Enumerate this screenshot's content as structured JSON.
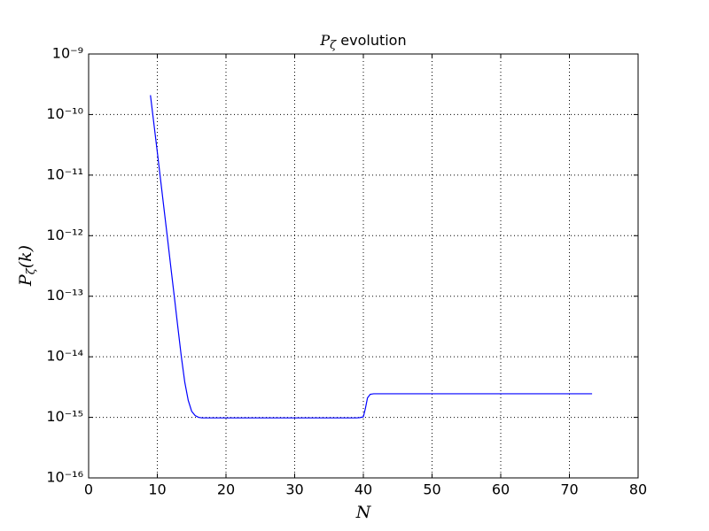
{
  "chart_data": {
    "type": "line",
    "title": [
      "P",
      "ζ",
      " evolution"
    ],
    "xlabel": "N",
    "ylabel": [
      "P",
      "ζ",
      "(k)"
    ],
    "x": [
      9,
      9.5,
      10,
      10.5,
      11,
      11.5,
      12,
      12.5,
      13,
      13.5,
      14,
      14.5,
      15,
      15.5,
      16,
      16.5,
      17,
      18,
      20,
      30,
      39,
      39.5,
      40,
      40.3,
      40.6,
      41,
      41.5,
      45,
      60,
      73.3
    ],
    "series": [
      {
        "name": "P",
        "color": "#0000ff",
        "values": [
          2.09e-10,
          7.08e-11,
          2.4e-11,
          7.94e-12,
          2.63e-12,
          8.71e-13,
          2.82e-13,
          9.33e-14,
          3.02e-14,
          1e-14,
          3.8e-15,
          1.91e-15,
          1.26e-15,
          1.07e-15,
          1e-15,
          9.8e-16,
          9.8e-16,
          9.8e-16,
          9.8e-16,
          9.8e-16,
          9.8e-16,
          9.9e-16,
          1.02e-15,
          1.41e-15,
          2.09e-15,
          2.4e-15,
          2.45e-15,
          2.45e-15,
          2.45e-15,
          2.45e-15
        ]
      }
    ],
    "xlim": [
      0,
      80
    ],
    "xticks": [
      0,
      10,
      20,
      30,
      40,
      50,
      60,
      70,
      80
    ],
    "ylim": [
      1e-16,
      1e-09
    ],
    "log_y": true,
    "yticks": [
      {
        "value": 1e-16,
        "label": "10⁻¹⁶"
      },
      {
        "value": 1e-15,
        "label": "10⁻¹⁵"
      },
      {
        "value": 1e-14,
        "label": "10⁻¹⁴"
      },
      {
        "value": 1e-13,
        "label": "10⁻¹³"
      },
      {
        "value": 1e-12,
        "label": "10⁻¹²"
      },
      {
        "value": 1e-11,
        "label": "10⁻¹¹"
      },
      {
        "value": 1e-10,
        "label": "10⁻¹⁰"
      },
      {
        "value": 1e-09,
        "label": "10⁻⁹"
      }
    ],
    "grid": true
  }
}
